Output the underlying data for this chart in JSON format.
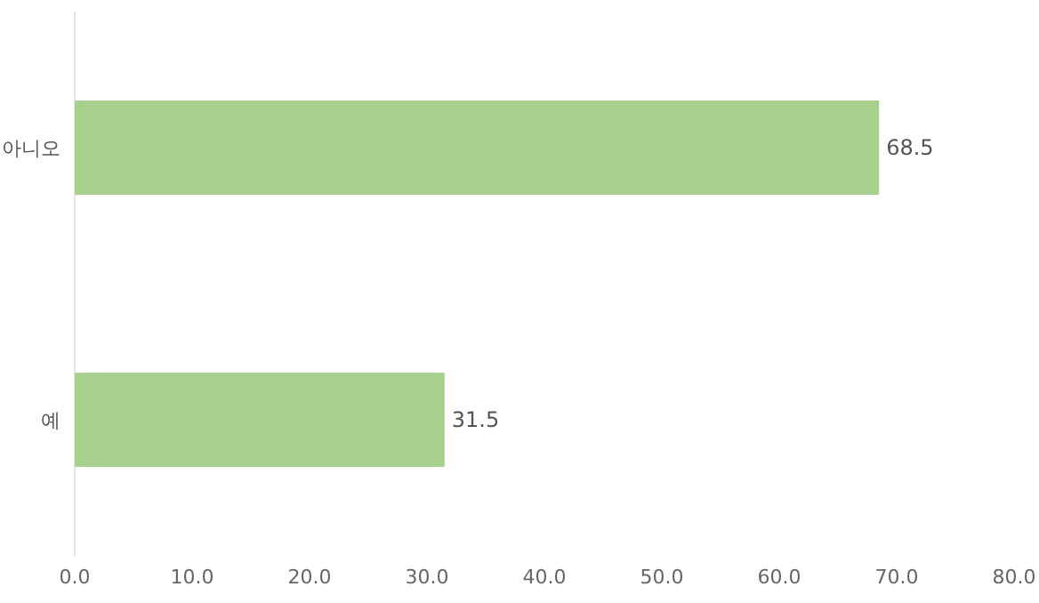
{
  "chart_data": {
    "type": "bar",
    "orientation": "horizontal",
    "categories": [
      "아니오",
      "예"
    ],
    "values": [
      68.5,
      31.5
    ],
    "color": "#a8d08d",
    "xlim": [
      0,
      80
    ],
    "xticks": [
      {
        "value": 0,
        "label": "0.0"
      },
      {
        "value": 10,
        "label": "10.0"
      },
      {
        "value": 20,
        "label": "20.0"
      },
      {
        "value": 30,
        "label": "30.0"
      },
      {
        "value": 40,
        "label": "40.0"
      },
      {
        "value": 50,
        "label": "50.0"
      },
      {
        "value": 60,
        "label": "60.0"
      },
      {
        "value": 70,
        "label": "70.0"
      },
      {
        "value": 80,
        "label": "80.0"
      }
    ],
    "data_labels": true,
    "grid": false
  }
}
